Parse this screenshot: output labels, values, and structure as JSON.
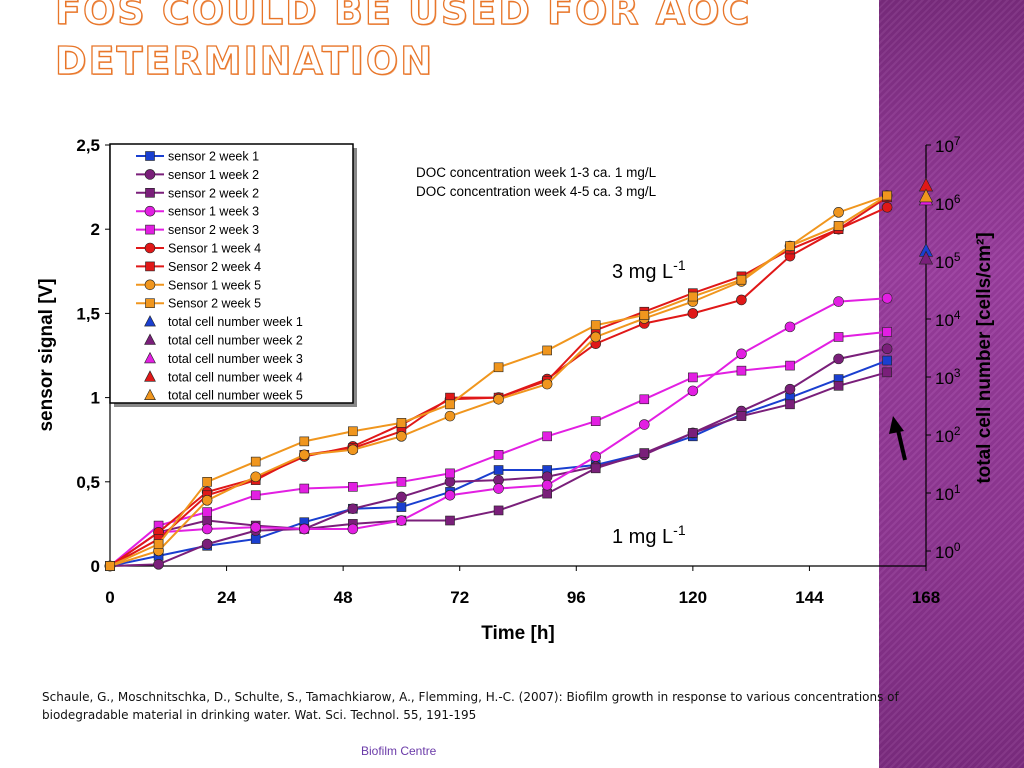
{
  "slide": {
    "title_line1": "FOS COULD BE USED FOR AOC",
    "title_line2": "DETERMINATION",
    "citation": "Schaule, G., Moschnitschka, D., Schulte, S., Tamachkiarow, A., Flemming, H.-C. (2007): Biofilm growth in response to various concentrations of biodegradable material in drinking water. Wat. Sci. Technol. 55, 191-195",
    "footer": "Biofilm Centre",
    "colors": {
      "side_band": "#8e3692",
      "title_outline": "#e8762a",
      "footer": "#6a3aa8"
    }
  },
  "chart_data": {
    "type": "line",
    "xlabel": "Time [h]",
    "ylabel": "sensor signal [V]",
    "y2label": "total cell number [cells/cm²]",
    "xlim": [
      0,
      168
    ],
    "ylim": [
      0,
      2.5
    ],
    "xticks": [
      "0",
      "24",
      "48",
      "72",
      "96",
      "120",
      "144",
      "168"
    ],
    "yticks": [
      "0",
      "0,5",
      "1",
      "1,5",
      "2",
      "2,5"
    ],
    "y2ticks": [
      {
        "base": "10",
        "exp": "0"
      },
      {
        "base": "10",
        "exp": "1"
      },
      {
        "base": "10",
        "exp": "2"
      },
      {
        "base": "10",
        "exp": "3"
      },
      {
        "base": "10",
        "exp": "4"
      },
      {
        "base": "10",
        "exp": "5"
      },
      {
        "base": "10",
        "exp": "6"
      },
      {
        "base": "10",
        "exp": "7"
      }
    ],
    "y2_scale": "log",
    "legend_position": "top-left",
    "notes": [
      "DOC concentration week 1-3 ca. 1 mg/L",
      "DOC concentration week 4-5 ca. 3 mg/L"
    ],
    "label_3mg": {
      "base": "3 mg L",
      "exp": "-1"
    },
    "label_1mg": {
      "base": "1 mg L",
      "exp": "-1"
    },
    "arrow": "up-arrow",
    "series": [
      {
        "name": "sensor 2 week 1",
        "color": "#1a3fd0",
        "marker": "square",
        "x": [
          0,
          10,
          20,
          30,
          40,
          50,
          60,
          70,
          80,
          90,
          100,
          110,
          120,
          130,
          140,
          150,
          160
        ],
        "y": [
          0,
          0.06,
          0.12,
          0.16,
          0.26,
          0.34,
          0.35,
          0.44,
          0.57,
          0.57,
          0.6,
          0.67,
          0.77,
          0.9,
          1.0,
          1.11,
          1.22
        ]
      },
      {
        "name": "sensor 1 week 2",
        "color": "#7a1f7a",
        "marker": "circle",
        "x": [
          0,
          10,
          20,
          30,
          40,
          50,
          60,
          70,
          80,
          90,
          100,
          110,
          120,
          130,
          140,
          150,
          160
        ],
        "y": [
          0,
          0.01,
          0.13,
          0.21,
          0.22,
          0.34,
          0.41,
          0.5,
          0.51,
          0.53,
          0.59,
          0.66,
          0.79,
          0.92,
          1.05,
          1.23,
          1.29
        ]
      },
      {
        "name": "sensor 2 week 2",
        "color": "#7a1f7a",
        "marker": "square",
        "x": [
          0,
          10,
          20,
          30,
          40,
          50,
          60,
          70,
          80,
          90,
          100,
          110,
          120,
          130,
          140,
          150,
          160
        ],
        "y": [
          0,
          0.2,
          0.27,
          0.24,
          0.22,
          0.25,
          0.27,
          0.27,
          0.33,
          0.43,
          0.58,
          0.67,
          0.79,
          0.89,
          0.96,
          1.07,
          1.15
        ]
      },
      {
        "name": "sensor 1 week 3",
        "color": "#e21fe2",
        "marker": "circle",
        "x": [
          0,
          10,
          20,
          30,
          40,
          50,
          60,
          70,
          80,
          90,
          100,
          110,
          120,
          130,
          140,
          150,
          160
        ],
        "y": [
          0,
          0.2,
          0.22,
          0.23,
          0.22,
          0.22,
          0.27,
          0.42,
          0.46,
          0.48,
          0.65,
          0.84,
          1.04,
          1.26,
          1.42,
          1.57,
          1.59
        ]
      },
      {
        "name": "sensor 2 week 3",
        "color": "#e21fe2",
        "marker": "square",
        "x": [
          0,
          10,
          20,
          30,
          40,
          50,
          60,
          70,
          80,
          90,
          100,
          110,
          120,
          130,
          140,
          150,
          160
        ],
        "y": [
          0,
          0.24,
          0.32,
          0.42,
          0.46,
          0.47,
          0.5,
          0.55,
          0.66,
          0.77,
          0.86,
          0.99,
          1.12,
          1.16,
          1.19,
          1.36,
          1.39
        ]
      },
      {
        "name": "Sensor 1 week 4",
        "color": "#e01818",
        "marker": "circle",
        "x": [
          0,
          10,
          20,
          30,
          40,
          50,
          60,
          70,
          80,
          90,
          100,
          110,
          120,
          130,
          140,
          150,
          160
        ],
        "y": [
          0,
          0.2,
          0.44,
          0.52,
          0.65,
          0.71,
          0.84,
          0.99,
          1.0,
          1.11,
          1.32,
          1.44,
          1.5,
          1.58,
          1.84,
          2.0,
          2.13
        ]
      },
      {
        "name": "Sensor 2 week 4",
        "color": "#e01818",
        "marker": "square",
        "x": [
          0,
          10,
          20,
          30,
          40,
          50,
          60,
          70,
          80,
          90,
          100,
          110,
          120,
          130,
          140,
          150,
          160
        ],
        "y": [
          0,
          0.16,
          0.42,
          0.51,
          0.66,
          0.7,
          0.8,
          1.0,
          1.0,
          1.1,
          1.4,
          1.51,
          1.62,
          1.72,
          1.88,
          2.0,
          2.19
        ]
      },
      {
        "name": "Sensor 1 week 5",
        "color": "#f0961e",
        "marker": "circle",
        "x": [
          0,
          10,
          20,
          30,
          40,
          50,
          60,
          70,
          80,
          90,
          100,
          110,
          120,
          130,
          140,
          150,
          160
        ],
        "y": [
          0,
          0.09,
          0.39,
          0.53,
          0.66,
          0.69,
          0.77,
          0.89,
          0.99,
          1.08,
          1.36,
          1.47,
          1.57,
          1.69,
          1.9,
          2.1,
          2.2
        ]
      },
      {
        "name": "Sensor 2 week 5",
        "color": "#f0961e",
        "marker": "square",
        "x": [
          0,
          10,
          20,
          30,
          40,
          50,
          60,
          70,
          80,
          90,
          100,
          110,
          120,
          130,
          140,
          150,
          160
        ],
        "y": [
          0,
          0.13,
          0.5,
          0.62,
          0.74,
          0.8,
          0.85,
          0.96,
          1.18,
          1.28,
          1.43,
          1.49,
          1.6,
          1.7,
          1.9,
          2.02,
          2.2
        ]
      },
      {
        "name": "total cell number week 1",
        "color": "#1a3fd0",
        "marker": "triangle",
        "axis": "right",
        "x": [
          168
        ],
        "y": [
          150000
        ]
      },
      {
        "name": "total cell number week 2",
        "color": "#7a1f7a",
        "marker": "triangle",
        "axis": "right",
        "x": [
          168
        ],
        "y": [
          110000
        ]
      },
      {
        "name": "total cell number week 3",
        "color": "#e21fe2",
        "marker": "triangle",
        "axis": "right",
        "x": [
          168
        ],
        "y": [
          1150000
        ]
      },
      {
        "name": "total cell number week 4",
        "color": "#e01818",
        "marker": "triangle",
        "axis": "right",
        "x": [
          168
        ],
        "y": [
          2000000
        ]
      },
      {
        "name": "total cell number week 5",
        "color": "#f0961e",
        "marker": "triangle",
        "axis": "right",
        "x": [
          168
        ],
        "y": [
          1300000
        ]
      }
    ]
  }
}
